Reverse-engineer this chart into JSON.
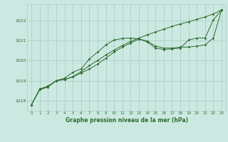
{
  "title": "Graphe pression niveau de la mer (hPa)",
  "xlim": [
    -0.5,
    23.5
  ],
  "ylim": [
    1017.5,
    1022.8
  ],
  "yticks": [
    1018,
    1019,
    1020,
    1021,
    1022
  ],
  "xticks": [
    0,
    1,
    2,
    3,
    4,
    5,
    6,
    7,
    8,
    9,
    10,
    11,
    12,
    13,
    14,
    15,
    16,
    17,
    18,
    19,
    20,
    21,
    22,
    23
  ],
  "bg_color": "#cce9e1",
  "grid_color": "#aacfc8",
  "line_color": "#2d6b2d",
  "line1_y": [
    1017.8,
    1018.58,
    1018.72,
    1019.0,
    1019.05,
    1019.2,
    1019.45,
    1019.75,
    1020.0,
    1020.28,
    1020.52,
    1020.75,
    1020.95,
    1021.12,
    1021.28,
    1021.42,
    1021.56,
    1021.7,
    1021.82,
    1021.93,
    1022.05,
    1022.17,
    1022.32,
    1022.52
  ],
  "line2_y": [
    1017.8,
    1018.58,
    1018.72,
    1019.0,
    1019.12,
    1019.42,
    1019.58,
    1020.08,
    1020.42,
    1020.78,
    1021.02,
    1021.1,
    1021.12,
    1021.08,
    1020.92,
    1020.62,
    1020.55,
    1020.58,
    1020.62,
    1021.02,
    1021.12,
    1021.12,
    1022.02,
    1022.52
  ],
  "line3_y": [
    1017.8,
    1018.55,
    1018.68,
    1019.0,
    1019.06,
    1019.18,
    1019.38,
    1019.58,
    1019.82,
    1020.12,
    1020.42,
    1020.67,
    1020.87,
    1021.07,
    1020.97,
    1020.72,
    1020.62,
    1020.62,
    1020.67,
    1020.67,
    1020.72,
    1020.78,
    1021.12,
    1022.52
  ]
}
